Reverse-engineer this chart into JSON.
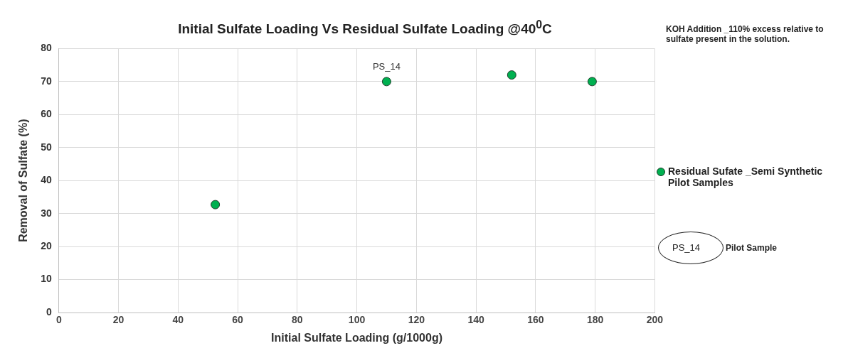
{
  "chart_data": {
    "type": "scatter",
    "title": "Initial Sulfate Loading Vs Residual Sulfate Loading @40$^{0}$C",
    "xlabel": "Initial Sulfate Loading (g/1000g)",
    "ylabel": "Removal of Sulfate (%)",
    "xlim": [
      0,
      200
    ],
    "xticks": [
      0,
      20,
      40,
      60,
      80,
      100,
      120,
      140,
      160,
      180,
      200
    ],
    "ylim": [
      0,
      80
    ],
    "yticks": [
      0,
      10,
      20,
      30,
      40,
      50,
      60,
      70,
      80
    ],
    "grid": true,
    "legend": "right",
    "marker": "circle",
    "series": [
      {
        "name": "Residual Sufate _Semi Synthetic Pilot Samples",
        "color": "#00b050",
        "x": [
          52.5,
          110,
          152,
          179
        ],
        "values": [
          32.7,
          70,
          72,
          70
        ]
      }
    ],
    "annotations": [
      "KOH Addition _110% excess relative to sulfate present in the solution.",
      {
        "text": "PS_14",
        "x": 110,
        "y": 70
      },
      "PS_14",
      "Pilot Sample"
    ]
  }
}
